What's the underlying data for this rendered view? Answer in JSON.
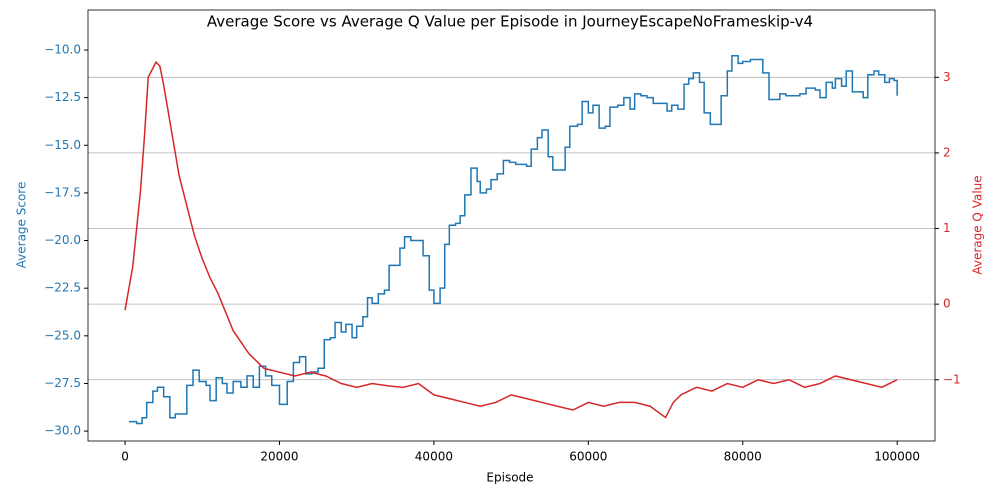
{
  "chart_data": {
    "type": "line",
    "title": "Average Score vs Average Q Value per Episode in JourneyEscapeNoFrameskip-v4",
    "xlabel": "Episode",
    "ylabel": "Average Score",
    "y2label": "Average Q Value",
    "xlim": [
      -4800,
      104900
    ],
    "ylim": [
      -30.52,
      -7.9
    ],
    "y2lim": [
      -1.81,
      3.89
    ],
    "xticks": [
      0,
      20000,
      40000,
      60000,
      80000,
      100000
    ],
    "yticks": [
      {
        "value": -30,
        "label": "−30.0"
      },
      {
        "value": -27.5,
        "label": "−27.5"
      },
      {
        "value": -25,
        "label": "−25.0"
      },
      {
        "value": -22.5,
        "label": "−22.5"
      },
      {
        "value": -20,
        "label": "−20.0"
      },
      {
        "value": -17.5,
        "label": "−17.5"
      },
      {
        "value": -15,
        "label": "−15.0"
      },
      {
        "value": -12.5,
        "label": "−12.5"
      },
      {
        "value": -10,
        "label": "−10.0"
      }
    ],
    "y2ticks": [
      {
        "value": -1,
        "label": "−1"
      },
      0,
      1,
      2,
      3
    ],
    "grid": "y2",
    "series": [
      {
        "name": "Average Score",
        "color": "#1f77b4",
        "drawstyle": "steps-post",
        "x": [
          500,
          1500,
          2200,
          2800,
          3600,
          4200,
          5000,
          5800,
          6500,
          8000,
          8800,
          9600,
          10500,
          11000,
          11800,
          12600,
          13200,
          14000,
          15000,
          15800,
          16600,
          17400,
          18200,
          19000,
          20000,
          21000,
          21800,
          22600,
          23400,
          24200,
          25000,
          25800,
          26600,
          27200,
          28000,
          28600,
          29400,
          30000,
          30800,
          31400,
          32000,
          32800,
          33600,
          34200,
          35600,
          36200,
          37000,
          38600,
          39400,
          40000,
          40800,
          41400,
          42000,
          42800,
          43400,
          44000,
          44800,
          45600,
          46000,
          46800,
          47400,
          48200,
          49000,
          49800,
          50600,
          52000,
          52600,
          53400,
          54000,
          54800,
          55400,
          57000,
          57600,
          58600,
          59200,
          60000,
          60600,
          61400,
          62200,
          62800,
          63800,
          64600,
          65400,
          66000,
          66800,
          67600,
          68400,
          69600,
          70200,
          70800,
          71600,
          72400,
          73000,
          73600,
          74400,
          75000,
          75800,
          77200,
          78000,
          78600,
          79400,
          80000,
          81000,
          82600,
          83400,
          84800,
          85600,
          87400,
          88200,
          89400,
          90000,
          90800,
          91600,
          92000,
          92800,
          93400,
          94200,
          95600,
          96200,
          97000,
          97600,
          98400,
          99000,
          99600,
          100000
        ],
        "values": [
          -29.5,
          -29.6,
          -29.3,
          -28.5,
          -27.9,
          -27.7,
          -28.2,
          -29.3,
          -29.1,
          -27.6,
          -26.8,
          -27.4,
          -27.6,
          -28.4,
          -27.2,
          -27.5,
          -28.0,
          -27.4,
          -27.7,
          -27.1,
          -27.7,
          -26.6,
          -27.1,
          -27.6,
          -28.6,
          -27.4,
          -26.4,
          -26.1,
          -27.0,
          -26.9,
          -26.7,
          -25.2,
          -25.1,
          -24.3,
          -24.8,
          -24.4,
          -25.1,
          -24.5,
          -24.0,
          -23.0,
          -23.3,
          -22.8,
          -22.6,
          -21.3,
          -20.4,
          -19.8,
          -20.0,
          -20.8,
          -22.6,
          -23.3,
          -22.5,
          -20.2,
          -19.2,
          -19.1,
          -18.7,
          -17.6,
          -16.2,
          -16.9,
          -17.5,
          -17.3,
          -16.8,
          -16.5,
          -15.8,
          -15.9,
          -16.0,
          -16.1,
          -15.2,
          -14.6,
          -14.2,
          -15.6,
          -16.3,
          -15.1,
          -14.0,
          -13.9,
          -12.7,
          -13.3,
          -12.9,
          -14.1,
          -14.0,
          -13.0,
          -12.9,
          -12.5,
          -13.1,
          -12.3,
          -12.4,
          -12.5,
          -12.8,
          -12.8,
          -13.2,
          -12.9,
          -13.1,
          -11.8,
          -11.5,
          -11.2,
          -11.7,
          -13.3,
          -13.9,
          -12.4,
          -11.1,
          -10.3,
          -10.7,
          -10.6,
          -10.5,
          -11.2,
          -12.6,
          -12.3,
          -12.4,
          -12.3,
          -12.0,
          -12.1,
          -12.5,
          -11.7,
          -12.0,
          -11.5,
          -11.9,
          -11.1,
          -12.2,
          -12.5,
          -11.3,
          -11.1,
          -11.3,
          -11.7,
          -11.5,
          -11.6,
          -12.4
        ]
      },
      {
        "name": "Average Q Value",
        "color": "#d62728",
        "axis": "y2",
        "x": [
          0,
          1000,
          2000,
          2500,
          3000,
          3500,
          4000,
          4500,
          5000,
          6000,
          7000,
          8000,
          9000,
          10000,
          11000,
          12000,
          13000,
          14000,
          15000,
          16000,
          17000,
          18000,
          20000,
          22000,
          24000,
          26000,
          28000,
          30000,
          32000,
          34000,
          36000,
          38000,
          40000,
          42000,
          44000,
          46000,
          48000,
          50000,
          52000,
          54000,
          56000,
          58000,
          60000,
          62000,
          64000,
          66000,
          68000,
          70000,
          71000,
          72000,
          74000,
          76000,
          78000,
          80000,
          82000,
          84000,
          86000,
          88000,
          90000,
          92000,
          94000,
          96000,
          98000,
          100000
        ],
        "values": [
          -0.08,
          0.5,
          1.5,
          2.2,
          3.0,
          3.1,
          3.2,
          3.15,
          2.9,
          2.3,
          1.7,
          1.3,
          0.9,
          0.6,
          0.35,
          0.15,
          -0.1,
          -0.35,
          -0.5,
          -0.65,
          -0.75,
          -0.85,
          -0.9,
          -0.95,
          -0.9,
          -0.95,
          -1.05,
          -1.1,
          -1.05,
          -1.08,
          -1.1,
          -1.05,
          -1.2,
          -1.25,
          -1.3,
          -1.35,
          -1.3,
          -1.2,
          -1.25,
          -1.3,
          -1.35,
          -1.4,
          -1.3,
          -1.35,
          -1.3,
          -1.3,
          -1.35,
          -1.5,
          -1.3,
          -1.2,
          -1.1,
          -1.15,
          -1.05,
          -1.1,
          -1.0,
          -1.05,
          -1.0,
          -1.1,
          -1.05,
          -0.95,
          -1.0,
          -1.05,
          -1.1,
          -1.0
        ]
      }
    ]
  }
}
